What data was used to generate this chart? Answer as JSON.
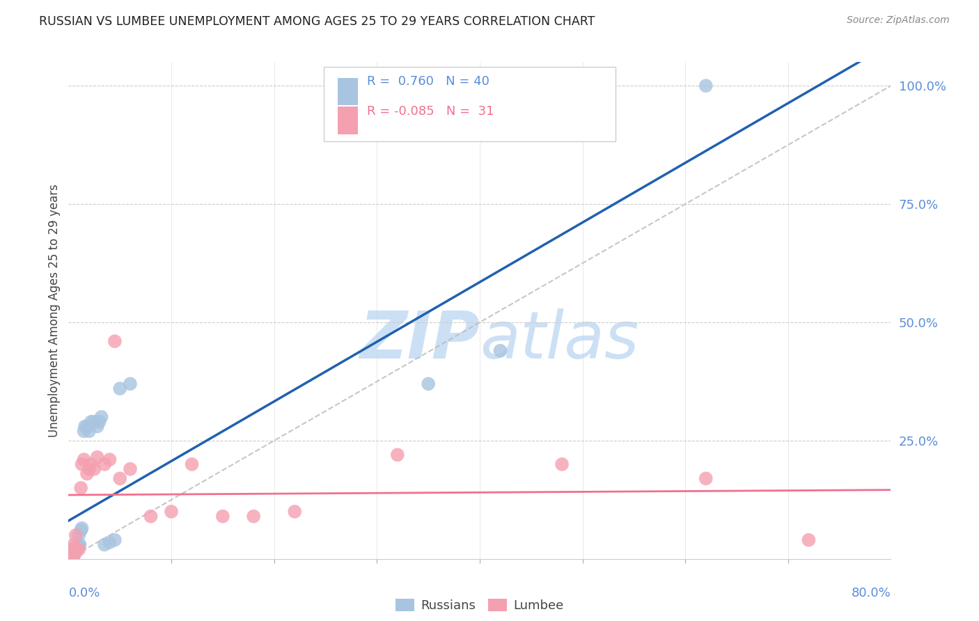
{
  "title": "RUSSIAN VS LUMBEE UNEMPLOYMENT AMONG AGES 25 TO 29 YEARS CORRELATION CHART",
  "source": "Source: ZipAtlas.com",
  "ylabel": "Unemployment Among Ages 25 to 29 years",
  "russian_R": 0.76,
  "russian_N": 40,
  "lumbee_R": -0.085,
  "lumbee_N": 31,
  "russian_color": "#a8c4e0",
  "lumbee_color": "#f4a0b0",
  "russian_line_color": "#2060b0",
  "lumbee_line_color": "#f07090",
  "diag_line_color": "#b8b8b8",
  "watermark_color": "#cce0f5",
  "background_color": "#ffffff",
  "russian_x": [
    0.001,
    0.002,
    0.002,
    0.003,
    0.003,
    0.003,
    0.004,
    0.004,
    0.004,
    0.005,
    0.005,
    0.005,
    0.006,
    0.006,
    0.007,
    0.007,
    0.008,
    0.009,
    0.01,
    0.01,
    0.011,
    0.012,
    0.013,
    0.015,
    0.016,
    0.018,
    0.02,
    0.022,
    0.025,
    0.028,
    0.03,
    0.032,
    0.035,
    0.04,
    0.045,
    0.05,
    0.06,
    0.35,
    0.42,
    0.62
  ],
  "russian_y": [
    0.01,
    0.01,
    0.012,
    0.01,
    0.015,
    0.02,
    0.008,
    0.012,
    0.018,
    0.01,
    0.015,
    0.02,
    0.01,
    0.015,
    0.02,
    0.025,
    0.02,
    0.025,
    0.03,
    0.05,
    0.03,
    0.06,
    0.065,
    0.27,
    0.28,
    0.28,
    0.27,
    0.29,
    0.29,
    0.28,
    0.29,
    0.3,
    0.03,
    0.035,
    0.04,
    0.36,
    0.37,
    0.37,
    0.44,
    1.0
  ],
  "lumbee_x": [
    0.001,
    0.003,
    0.004,
    0.005,
    0.006,
    0.007,
    0.008,
    0.01,
    0.012,
    0.013,
    0.015,
    0.018,
    0.02,
    0.022,
    0.025,
    0.028,
    0.035,
    0.04,
    0.045,
    0.05,
    0.06,
    0.08,
    0.1,
    0.12,
    0.15,
    0.18,
    0.22,
    0.32,
    0.48,
    0.62,
    0.72
  ],
  "lumbee_y": [
    0.01,
    0.01,
    0.02,
    0.03,
    0.01,
    0.05,
    0.02,
    0.02,
    0.15,
    0.2,
    0.21,
    0.18,
    0.19,
    0.2,
    0.19,
    0.215,
    0.2,
    0.21,
    0.46,
    0.17,
    0.19,
    0.09,
    0.1,
    0.2,
    0.09,
    0.09,
    0.1,
    0.22,
    0.2,
    0.17,
    0.04
  ],
  "xlim": [
    0.0,
    0.8
  ],
  "ylim": [
    0.0,
    1.05
  ],
  "ytick_positions": [
    0.25,
    0.5,
    0.75,
    1.0
  ],
  "ytick_labels": [
    "25.0%",
    "50.0%",
    "75.0%",
    "100.0%"
  ],
  "tick_color": "#5b8dd9",
  "grid_color": "#cccccc",
  "spine_color": "#cccccc"
}
